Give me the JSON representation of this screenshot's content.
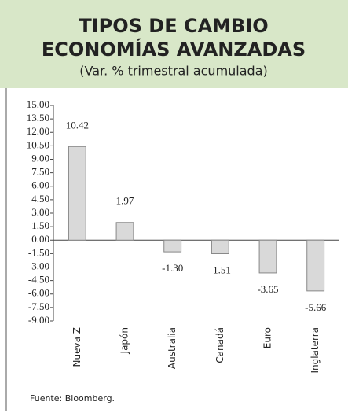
{
  "chart_data": {
    "type": "bar",
    "title": [
      "TIPOS DE CAMBIO",
      "ECONOMÍAS AVANZADAS"
    ],
    "subtitle": "(Var. % trimestral acumulada)",
    "categories": [
      "Nueva Z",
      "Japón",
      "Australia",
      "Canadá",
      "Euro",
      "Inglaterra"
    ],
    "values": [
      10.42,
      1.97,
      -1.3,
      -1.51,
      -3.65,
      -5.66
    ],
    "value_labels": [
      "10.42",
      "1.97",
      "-1.30",
      "-1.51",
      "-3.65",
      "-5.66"
    ],
    "color": "#d9d9d9",
    "ylim": [
      -9,
      15
    ],
    "yticks": [
      {
        "value": 15,
        "label": "15.00"
      },
      {
        "value": 13.5,
        "label": "13.50"
      },
      {
        "value": 12,
        "label": "12.00"
      },
      {
        "value": 10.5,
        "label": "10.50"
      },
      {
        "value": 9,
        "label": "9.00"
      },
      {
        "value": 7.5,
        "label": "7.50"
      },
      {
        "value": 6,
        "label": "6.00"
      },
      {
        "value": 4.5,
        "label": "4.50"
      },
      {
        "value": 3,
        "label": "3.00"
      },
      {
        "value": 1.5,
        "label": "1.50"
      },
      {
        "value": 0,
        "label": "0.00"
      },
      {
        "value": -1.5,
        "label": "-1.50"
      },
      {
        "value": -3,
        "label": "-3.00"
      },
      {
        "value": -4.5,
        "label": "-4.50"
      },
      {
        "value": -6,
        "label": "-6.00"
      },
      {
        "value": -7.5,
        "label": "-7.50"
      },
      {
        "value": -9,
        "label": "-9.00"
      }
    ],
    "source": "Fuente: Bloomberg."
  }
}
